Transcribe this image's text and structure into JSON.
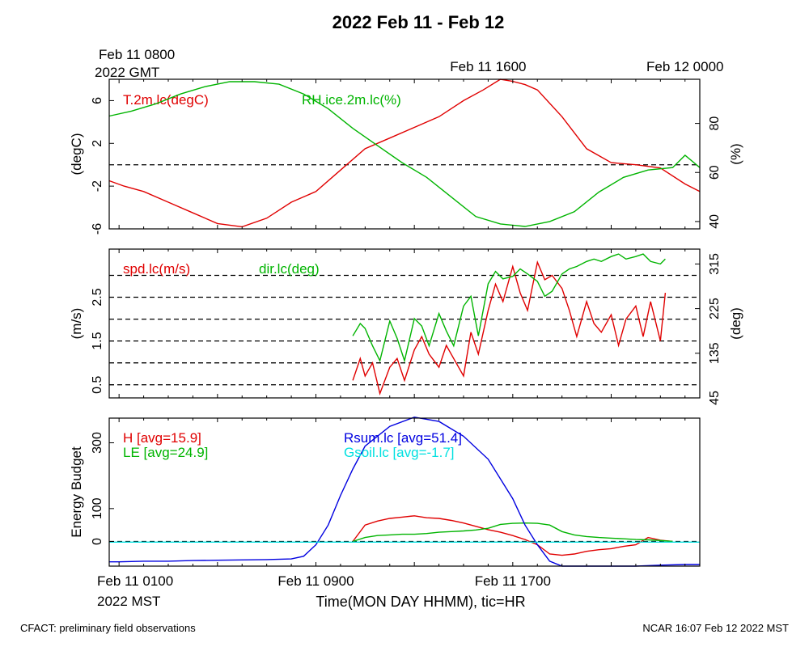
{
  "title": "2022 Feb 11 - Feb 12",
  "top_axis": {
    "labels": [
      {
        "x": 8,
        "lines": [
          "Feb 11 0800",
          "2022 GMT"
        ]
      },
      {
        "x": 16,
        "lines": [
          "Feb 11 1600"
        ]
      },
      {
        "x": 24,
        "lines": [
          "Feb 12 0000"
        ]
      }
    ]
  },
  "bottom_axis": {
    "labels": [
      {
        "x": 1,
        "lines": [
          "Feb 11 0100",
          "2022 MST"
        ]
      },
      {
        "x": 9,
        "lines": [
          "Feb 11 0900"
        ]
      },
      {
        "x": 17,
        "lines": [
          "Feb 11 1700"
        ]
      }
    ],
    "xlabel": "Time(MON DAY HHMM), tic=HR"
  },
  "footer": {
    "left": "CFACT: preliminary field observations",
    "right": "NCAR 16:07 Feb 12 2022 MST"
  },
  "colors": {
    "red": "#e00000",
    "green": "#00b400",
    "blue": "#0000e0",
    "cyan": "#00e0e0",
    "black": "#000000"
  },
  "chart_data": [
    {
      "type": "line",
      "xlim": [
        0.6,
        24.6
      ],
      "ylabel": "(degC)",
      "y2label": "(%)",
      "ylim": [
        -6,
        8
      ],
      "y2lim": [
        37,
        98
      ],
      "yticks": [
        -6,
        -2,
        2,
        6
      ],
      "y2ticks": [
        40,
        60,
        80
      ],
      "hlines_y": [
        0
      ],
      "series": [
        {
          "name": "T.2m.lc(degC)",
          "axis": "left",
          "color": "#e00000",
          "x": [
            0.6,
            1.2,
            2,
            3,
            4,
            5,
            6,
            7,
            8,
            9,
            10,
            11,
            12,
            13,
            14,
            15,
            15.8,
            16.5,
            17,
            17.5,
            18,
            19,
            20,
            21,
            22,
            23,
            24,
            24.6
          ],
          "y": [
            -1.5,
            -2,
            -2.5,
            -3.5,
            -4.5,
            -5.5,
            -5.8,
            -5,
            -3.5,
            -2.5,
            -0.5,
            1.5,
            2.5,
            3.5,
            4.5,
            6,
            7,
            8,
            7.8,
            7.5,
            7,
            4.5,
            1.5,
            0.2,
            0,
            -0.3,
            -1.8,
            -2.5
          ]
        },
        {
          "name": "RH.ice.2m.lc(%)",
          "axis": "right",
          "color": "#00b400",
          "x": [
            0.6,
            1.5,
            2.5,
            3.5,
            4.5,
            5.5,
            6.5,
            7.5,
            8.5,
            9.5,
            10.5,
            11.5,
            12.5,
            13.5,
            14.5,
            15.5,
            16.5,
            17.5,
            18.5,
            19.5,
            20.5,
            21.5,
            22.5,
            23.5,
            24,
            24.6
          ],
          "y": [
            83,
            85,
            88,
            92,
            95,
            97,
            97,
            96,
            92,
            86,
            78,
            71,
            64,
            58,
            50,
            42,
            39,
            38,
            40,
            44,
            52,
            58,
            61,
            62,
            67,
            62
          ]
        }
      ]
    },
    {
      "type": "line",
      "xlim": [
        0.6,
        24.6
      ],
      "ylabel": "(m/s)",
      "y2label": "(deg)",
      "ylim": [
        0.2,
        3.6
      ],
      "y2lim": [
        45,
        345
      ],
      "yticks": [
        0.5,
        1.5,
        2.5
      ],
      "y2ticks": [
        45,
        135,
        225,
        315
      ],
      "hlines_y": [
        0.5,
        1.0,
        1.5,
        2.0,
        2.5,
        3.0
      ],
      "series": [
        {
          "name": "spd.lc(m/s)",
          "axis": "left",
          "color": "#e00000",
          "x": [
            10.5,
            10.8,
            11,
            11.3,
            11.6,
            12,
            12.3,
            12.6,
            13,
            13.3,
            13.6,
            14,
            14.3,
            14.6,
            15,
            15.3,
            15.6,
            16,
            16.3,
            16.6,
            17,
            17.3,
            17.6,
            18,
            18.3,
            18.6,
            19,
            19.3,
            19.6,
            20,
            20.3,
            20.6,
            21,
            21.3,
            21.6,
            22,
            22.3,
            22.6,
            23,
            23.2
          ],
          "y": [
            0.6,
            1.1,
            0.7,
            1.0,
            0.3,
            0.9,
            1.1,
            0.6,
            1.3,
            1.6,
            1.2,
            0.9,
            1.4,
            1.1,
            0.7,
            1.7,
            1.2,
            2.2,
            2.8,
            2.4,
            3.2,
            2.6,
            2.2,
            3.3,
            2.9,
            3.0,
            2.7,
            2.2,
            1.6,
            2.4,
            1.9,
            1.7,
            2.1,
            1.4,
            2.0,
            2.3,
            1.6,
            2.4,
            1.5,
            2.6
          ]
        },
        {
          "name": "dir.lc(deg)",
          "axis": "right",
          "color": "#00b400",
          "x": [
            10.5,
            10.8,
            11,
            11.3,
            11.6,
            12,
            12.3,
            12.6,
            13,
            13.3,
            13.6,
            14,
            14.3,
            14.6,
            15,
            15.3,
            15.6,
            16,
            16.3,
            16.6,
            17,
            17.3,
            17.6,
            18,
            18.3,
            18.6,
            19,
            19.3,
            19.6,
            20,
            20.3,
            20.6,
            21,
            21.3,
            21.6,
            22,
            22.3,
            22.6,
            23,
            23.2
          ],
          "y": [
            170,
            195,
            185,
            150,
            120,
            200,
            165,
            120,
            205,
            190,
            150,
            215,
            180,
            150,
            230,
            250,
            170,
            275,
            300,
            285,
            290,
            305,
            295,
            280,
            250,
            260,
            295,
            305,
            310,
            320,
            325,
            320,
            330,
            335,
            325,
            330,
            335,
            320,
            315,
            325
          ]
        }
      ]
    },
    {
      "type": "line",
      "xlim": [
        0.6,
        24.6
      ],
      "ylabel": "Energy Budget",
      "ylim": [
        -75,
        375
      ],
      "yticks": [
        0,
        100,
        300
      ],
      "hlines_y": [
        0
      ],
      "series": [
        {
          "name": "H",
          "label": "H [avg=15.9]",
          "color": "#e00000",
          "x": [
            10.5,
            11,
            11.5,
            12,
            12.5,
            13,
            13.5,
            14,
            14.5,
            15,
            15.5,
            16,
            16.5,
            17,
            17.5,
            18,
            18.5,
            19,
            19.5,
            20,
            20.5,
            21,
            21.5,
            22,
            22.5,
            23,
            23.5
          ],
          "y": [
            0,
            50,
            62,
            70,
            74,
            78,
            72,
            70,
            64,
            56,
            46,
            36,
            28,
            18,
            6,
            -10,
            -38,
            -42,
            -38,
            -30,
            -25,
            -22,
            -15,
            -10,
            12,
            4,
            0
          ]
        },
        {
          "name": "LE",
          "label": "LE [avg=24.9]",
          "color": "#00b400",
          "x": [
            10.5,
            11,
            11.5,
            12,
            12.5,
            13,
            13.5,
            14,
            14.5,
            15,
            15.5,
            16,
            16.5,
            17,
            17.5,
            18,
            18.5,
            19,
            19.5,
            20,
            20.5,
            21,
            21.5,
            22,
            22.5,
            23,
            23.5
          ],
          "y": [
            0,
            12,
            18,
            20,
            22,
            22,
            24,
            28,
            30,
            32,
            35,
            40,
            52,
            55,
            56,
            55,
            50,
            30,
            20,
            15,
            12,
            10,
            8,
            6,
            5,
            3,
            0
          ]
        },
        {
          "name": "Rsum.lc",
          "label": "Rsum.lc [avg=51.4]",
          "color": "#0000e0",
          "x": [
            0.6,
            1,
            2,
            3,
            4,
            5,
            6,
            7,
            8,
            8.5,
            9,
            9.5,
            10,
            10.5,
            11,
            12,
            13,
            14,
            15,
            16,
            17,
            17.5,
            18,
            18.5,
            19,
            20,
            21,
            22,
            23,
            24,
            24.6
          ],
          "y": [
            -62,
            -62,
            -60,
            -60,
            -58,
            -57,
            -56,
            -55,
            -53,
            -45,
            -10,
            50,
            140,
            220,
            290,
            350,
            378,
            365,
            320,
            250,
            130,
            50,
            -10,
            -60,
            -75,
            -75,
            -75,
            -75,
            -72,
            -70,
            -70
          ]
        },
        {
          "name": "Gsoil.lc",
          "label": "Gsoil.lc [avg=-1.7]",
          "color": "#00e0e0",
          "x": [
            0.6,
            24.6
          ],
          "y": [
            -2,
            -2
          ]
        }
      ]
    }
  ]
}
